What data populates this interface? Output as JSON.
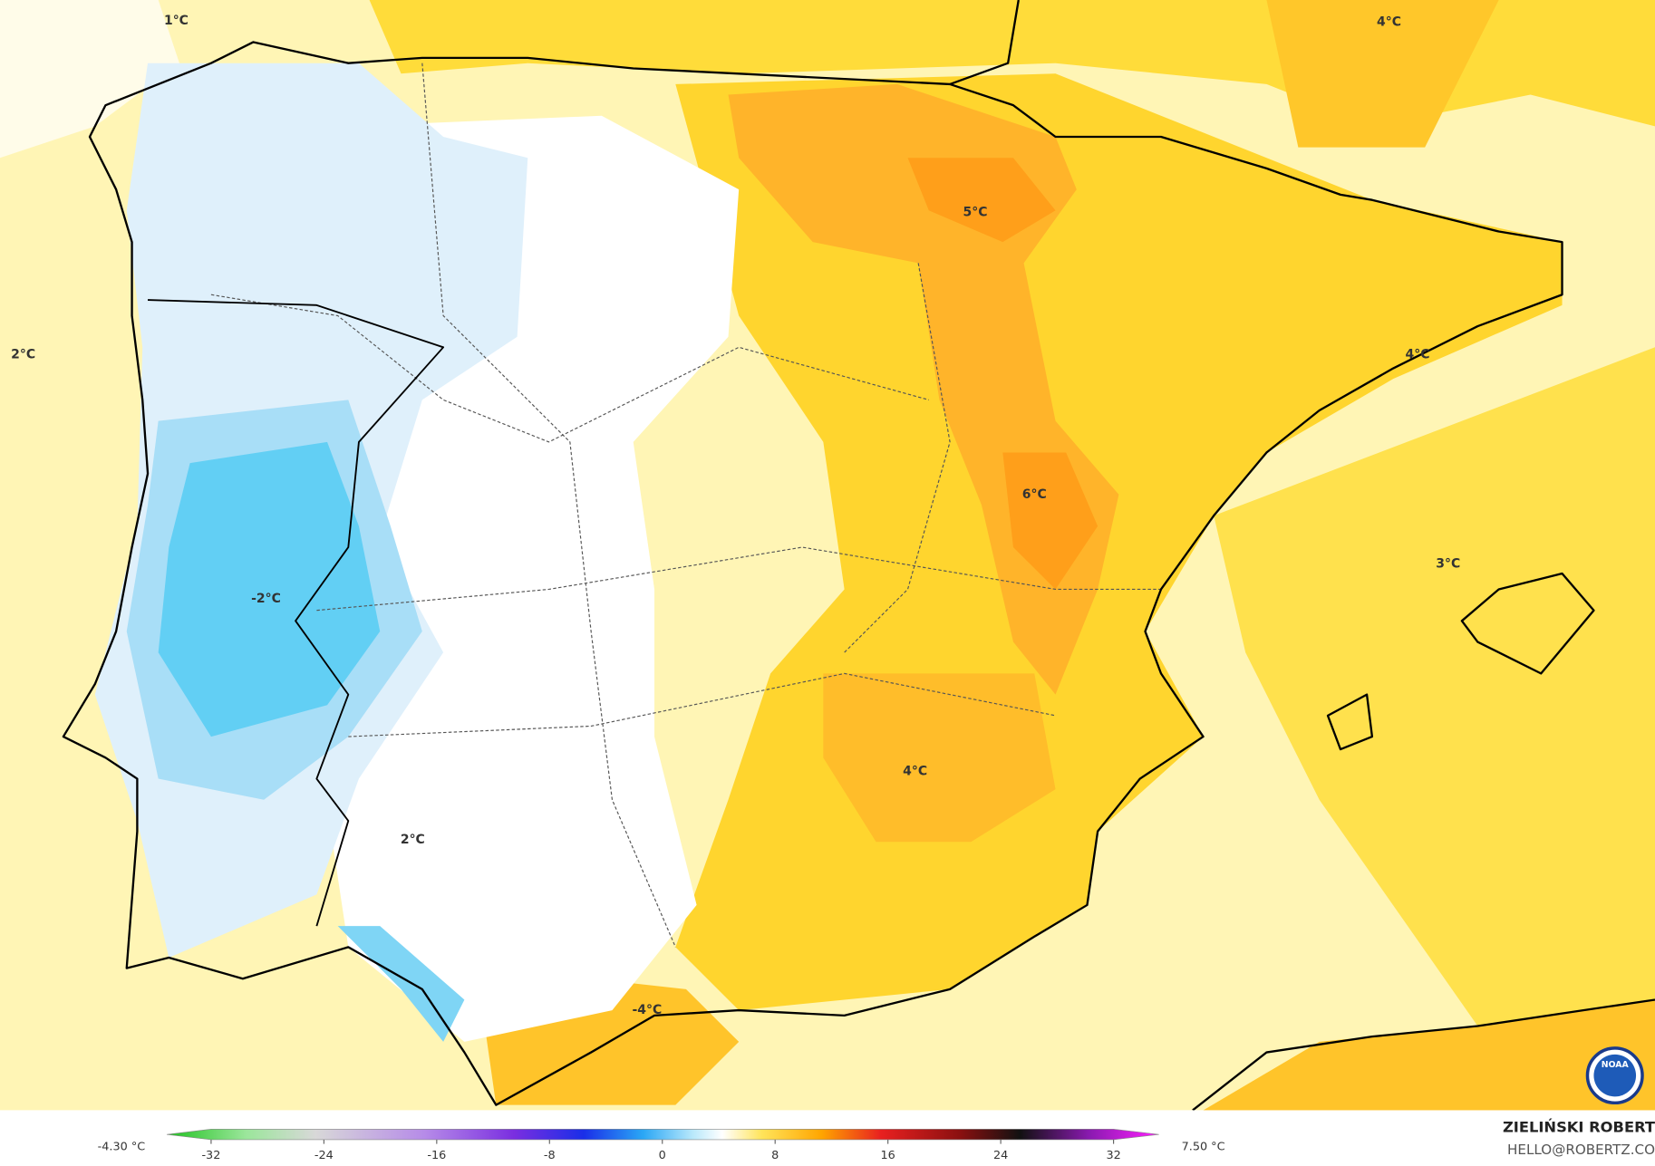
{
  "map": {
    "labels": [
      "1°C",
      "2°C",
      "4°C",
      "5°C",
      "4°C",
      "6°C",
      "3°C",
      "-2°C",
      "4°C",
      "2°C",
      "-4°C"
    ],
    "colorbar": {
      "ticks": [
        -32,
        -24,
        -16,
        -8,
        0,
        8,
        16,
        24,
        32
      ],
      "min_label": "-4.30 °C",
      "max_label": "7.50 °C"
    },
    "credit": {
      "name": "ZIELIŃSKI ROBERT",
      "email": "HELLO@ROBERTZ.CO"
    },
    "logo_text": "NOAA"
  }
}
